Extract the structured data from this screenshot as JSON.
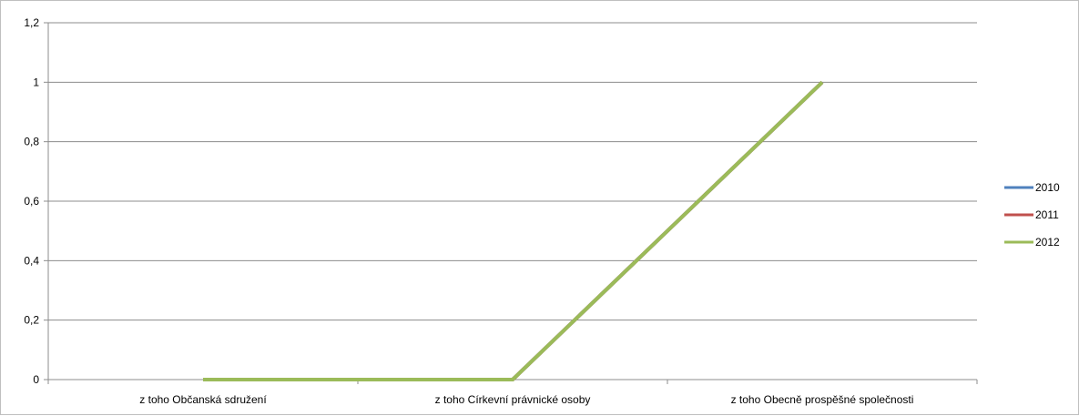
{
  "chart_data": {
    "type": "line",
    "categories": [
      "z toho Občanská sdružení",
      "z toho Církevní právnické osoby",
      "z toho Obecně prospěšné společnosti"
    ],
    "ylim": [
      0,
      1.2
    ],
    "y_tick_step": 0.2,
    "y_tick_labels": [
      "0",
      "0,2",
      "0,4",
      "0,6",
      "0,8",
      "1",
      "1,2"
    ],
    "grid": true,
    "legend": "right",
    "series": [
      {
        "name": "2010",
        "values": [
          0,
          0,
          1
        ],
        "color": "#4F81BD"
      },
      {
        "name": "2011",
        "values": [
          0,
          0,
          1
        ],
        "color": "#C0504D"
      },
      {
        "name": "2012",
        "values": [
          0,
          0,
          1
        ],
        "color": "#9BBB59"
      }
    ]
  }
}
